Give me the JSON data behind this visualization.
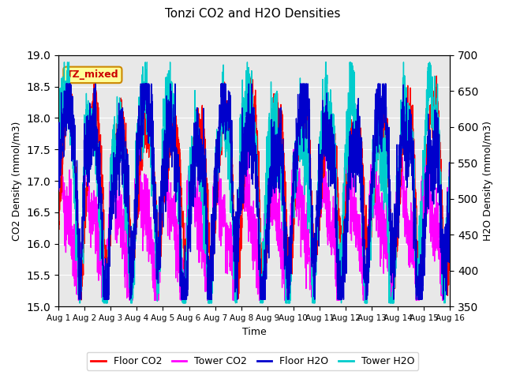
{
  "title": "Tonzi CO2 and H2O Densities",
  "xlabel": "Time",
  "ylabel_left": "CO2 Density (mmol/m3)",
  "ylabel_right": "H2O Density (mmol/m3)",
  "ylim_left": [
    15.0,
    19.0
  ],
  "ylim_right": [
    350,
    700
  ],
  "yticks_left": [
    15.0,
    15.5,
    16.0,
    16.5,
    17.0,
    17.5,
    18.0,
    18.5,
    19.0
  ],
  "yticks_right": [
    350,
    400,
    450,
    500,
    550,
    600,
    650,
    700
  ],
  "xtick_labels": [
    "Aug 1",
    "Aug 2",
    "Aug 3",
    "Aug 4",
    "Aug 5",
    "Aug 6",
    "Aug 7",
    "Aug 8",
    "Aug 9",
    "Aug 10",
    "Aug 11",
    "Aug 12",
    "Aug 13",
    "Aug 14",
    "Aug 15",
    "Aug 16"
  ],
  "colors": {
    "floor_co2": "#FF0000",
    "tower_co2": "#FF00FF",
    "floor_h2o": "#0000CC",
    "tower_h2o": "#00CCCC"
  },
  "annotation_text": "TZ_mixed",
  "annotation_facecolor": "#FFFF99",
  "annotation_edgecolor": "#CC8800",
  "annotation_textcolor": "#CC0000",
  "plot_bgcolor": "#E8E8E8",
  "legend_entries": [
    "Floor CO2",
    "Tower CO2",
    "Floor H2O",
    "Tower H2O"
  ],
  "n_points": 3000,
  "seed": 7
}
